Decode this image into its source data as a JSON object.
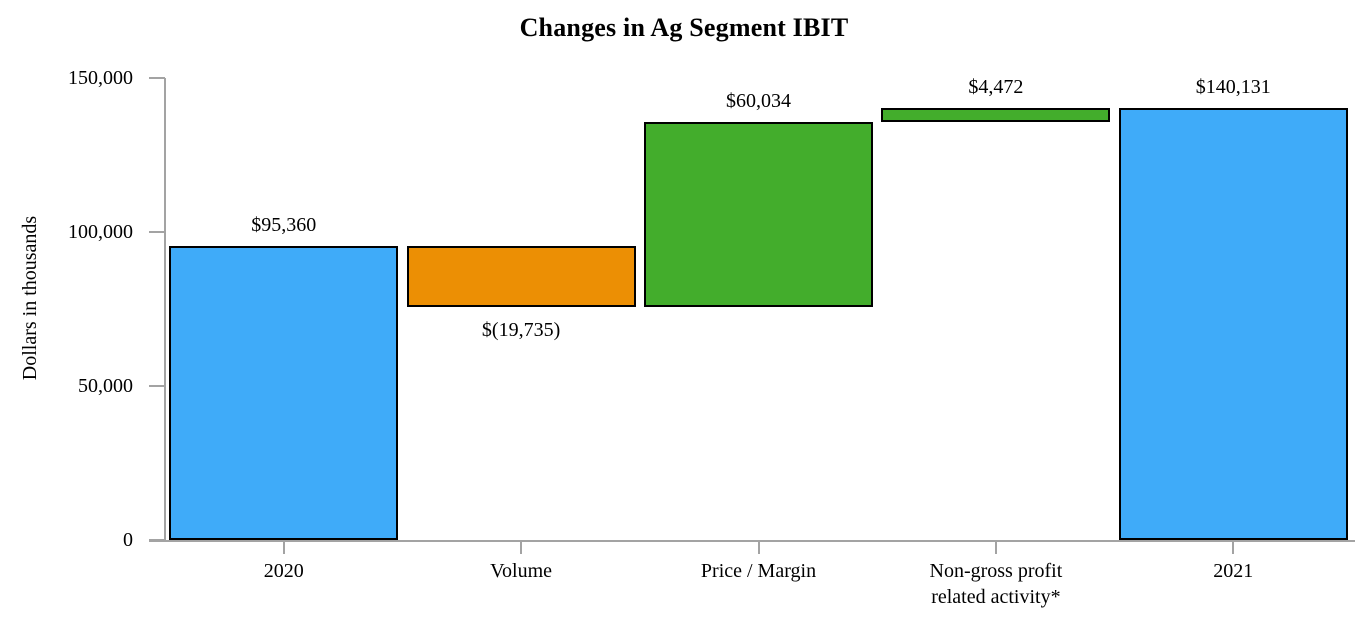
{
  "title": "Changes in Ag Segment IBIT",
  "colors": {
    "total_blue": "#3FABF9",
    "decrease_orange": "#EC8F04",
    "increase_green": "#43AD2C",
    "axis_gray": "#A3A3A3",
    "bar_border": "#000000",
    "text": "#000000"
  },
  "chart_data": {
    "type": "bar",
    "subtype": "waterfall",
    "title": "Changes in Ag Segment IBIT",
    "ylabel": "Dollars in thousands",
    "xlabel": "",
    "ylim": [
      0,
      150000
    ],
    "yticks": [
      0,
      50000,
      100000,
      150000
    ],
    "ytick_labels": [
      "0",
      "50,000",
      "100,000",
      "150,000"
    ],
    "grid": false,
    "legend": false,
    "categories": [
      "2020",
      "Volume",
      "Price / Margin",
      "Non-gross profit related activity*",
      "2021"
    ],
    "category_label_lines": [
      [
        "2020"
      ],
      [
        "Volume"
      ],
      [
        "Price / Margin"
      ],
      [
        "Non-gross profit",
        "related activity*"
      ],
      [
        "2021"
      ]
    ],
    "bars": [
      {
        "name": "2020",
        "from": 0,
        "to": 95360,
        "change": 95360,
        "value_label": "$95,360",
        "color_key": "total_blue",
        "label_position": "above"
      },
      {
        "name": "Volume",
        "from": 95360,
        "to": 75625,
        "change": -19735,
        "value_label": "$(19,735)",
        "color_key": "decrease_orange",
        "label_position": "below"
      },
      {
        "name": "Price / Margin",
        "from": 75625,
        "to": 135659,
        "change": 60034,
        "value_label": "$60,034",
        "color_key": "increase_green",
        "label_position": "above"
      },
      {
        "name": "Non-gross profit related activity*",
        "from": 135659,
        "to": 140131,
        "change": 4472,
        "value_label": "$4,472",
        "color_key": "increase_green",
        "label_position": "above"
      },
      {
        "name": "2021",
        "from": 0,
        "to": 140131,
        "change": 140131,
        "value_label": "$140,131",
        "color_key": "total_blue",
        "label_position": "above"
      }
    ]
  }
}
